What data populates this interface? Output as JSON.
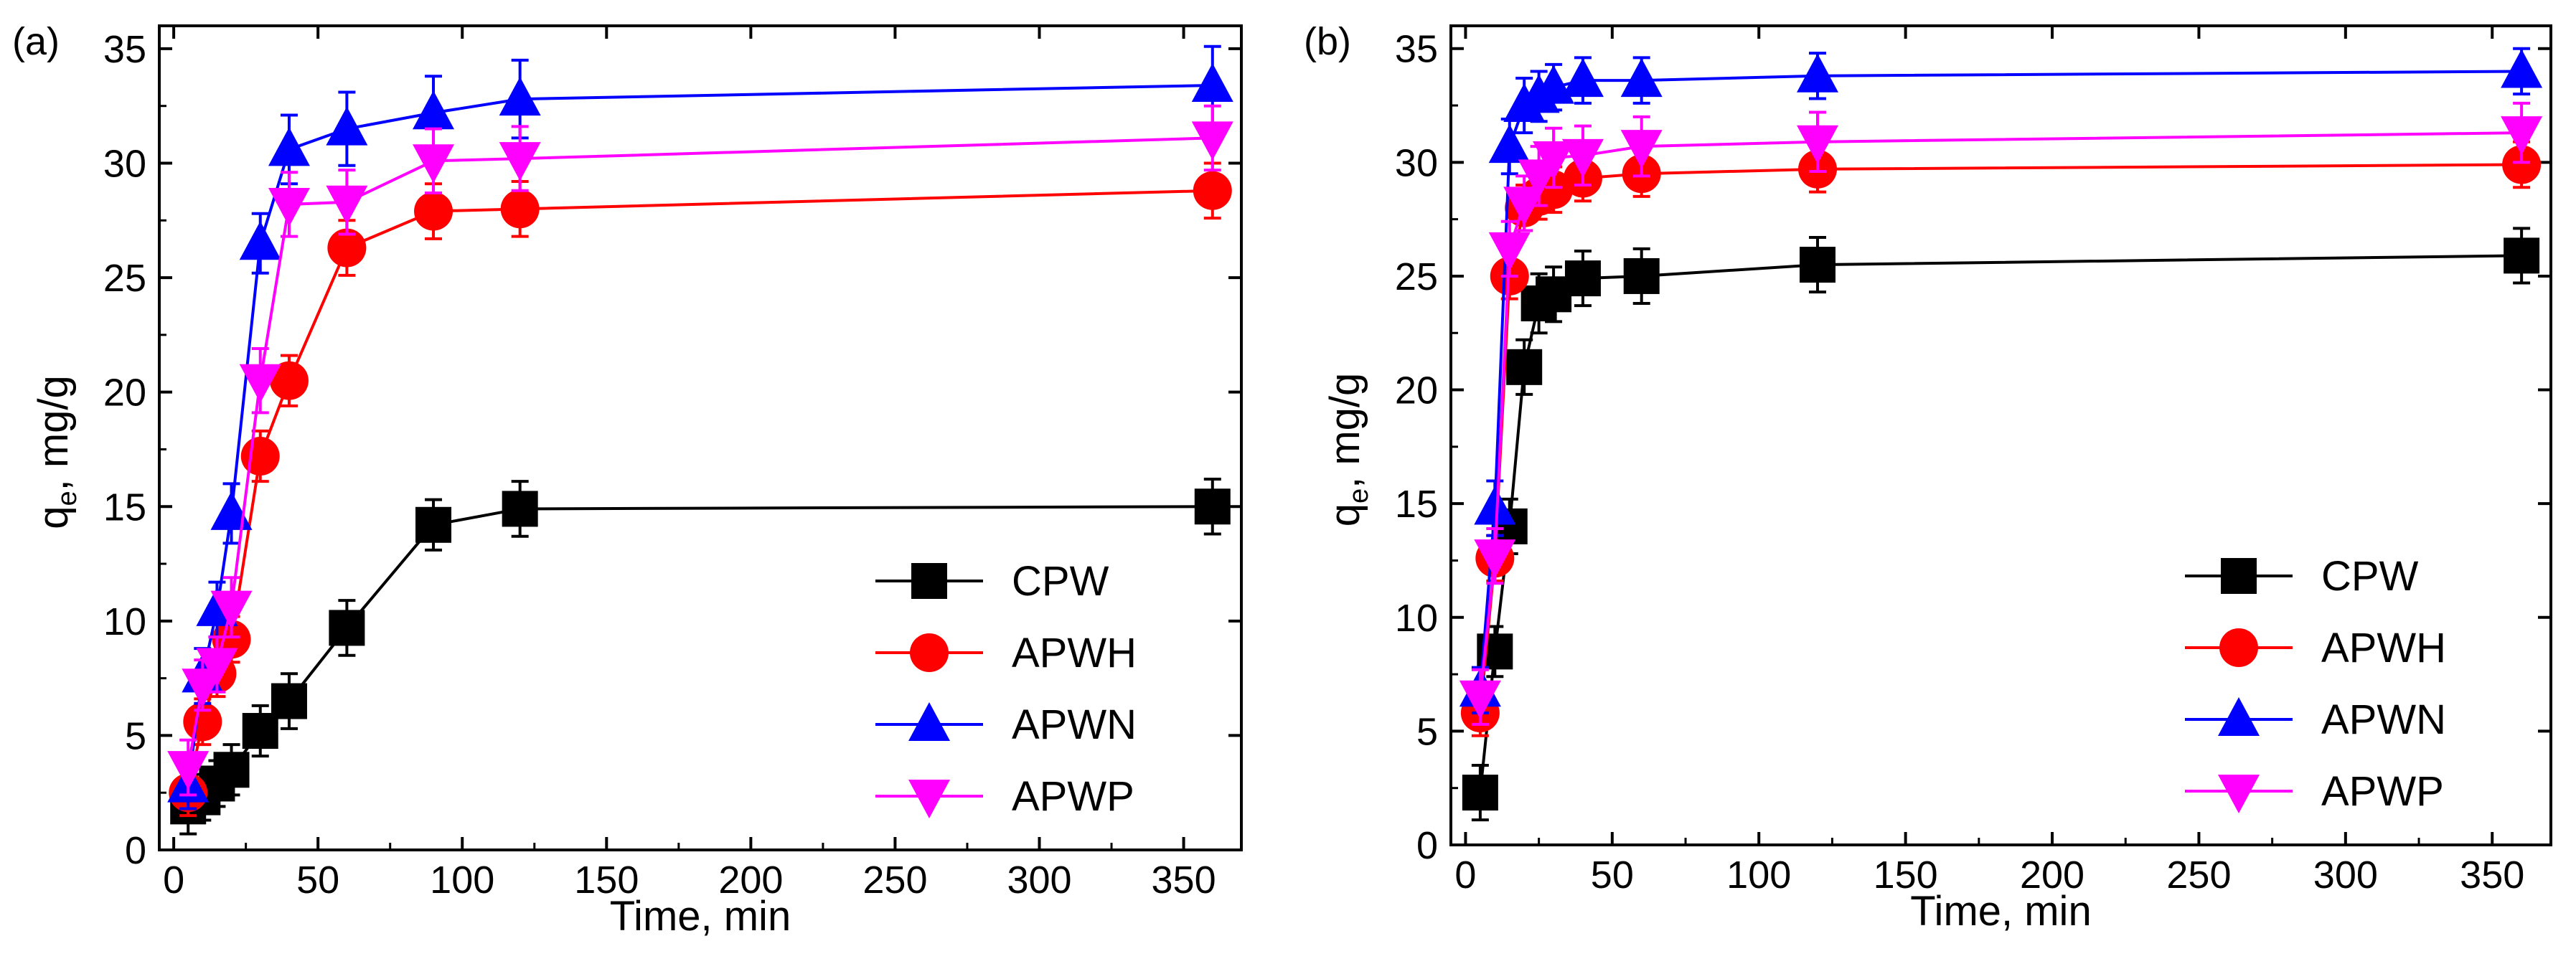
{
  "chart_data": [
    {
      "type": "line",
      "panel_label": "(a)",
      "xlabel": "Time, min",
      "ylabel_main": "q",
      "ylabel_sub": "e",
      "ylabel_tail": ", mg/g",
      "xlim": [
        -5,
        370
      ],
      "ylim": [
        0,
        36
      ],
      "xticks": [
        0,
        50,
        100,
        150,
        200,
        250,
        300,
        350
      ],
      "yticks": [
        0,
        5,
        10,
        15,
        20,
        25,
        30,
        35
      ],
      "x": [
        5,
        10,
        15,
        20,
        30,
        40,
        60,
        90,
        120,
        360
      ],
      "legend_position": "bottom-right",
      "series": [
        {
          "name": "CPW",
          "color": "#000000",
          "marker": "square",
          "values": [
            1.9,
            2.3,
            2.9,
            3.5,
            5.2,
            6.5,
            9.7,
            14.2,
            14.9,
            15.0
          ],
          "errors": [
            1.2,
            1.0,
            1.0,
            1.1,
            1.1,
            1.2,
            1.2,
            1.1,
            1.2,
            1.2
          ]
        },
        {
          "name": "APWH",
          "color": "#ff0000",
          "marker": "circle",
          "values": [
            2.5,
            5.6,
            7.7,
            9.2,
            17.2,
            20.5,
            26.3,
            27.9,
            28.0,
            28.8
          ],
          "errors": [
            1.0,
            1.0,
            1.0,
            1.0,
            1.1,
            1.1,
            1.2,
            1.2,
            1.2,
            1.2
          ]
        },
        {
          "name": "APWN",
          "color": "#0000ff",
          "marker": "triangle-up",
          "values": [
            2.8,
            7.6,
            10.5,
            14.7,
            26.5,
            30.6,
            31.5,
            32.2,
            32.8,
            33.4
          ],
          "errors": [
            1.0,
            1.2,
            1.2,
            1.3,
            1.3,
            1.5,
            1.6,
            1.6,
            1.7,
            1.7
          ]
        },
        {
          "name": "APWP",
          "color": "#ff00ff",
          "marker": "triangle-down",
          "values": [
            3.6,
            7.2,
            8.1,
            10.6,
            20.5,
            28.2,
            28.3,
            30.1,
            30.2,
            31.1
          ],
          "errors": [
            1.2,
            1.1,
            1.2,
            1.3,
            1.4,
            1.4,
            1.4,
            1.4,
            1.4,
            1.4
          ]
        }
      ]
    },
    {
      "type": "line",
      "panel_label": "(b)",
      "xlabel": "Time, min",
      "ylabel_main": "q",
      "ylabel_sub": "e",
      "ylabel_tail": ", mg/g",
      "xlim": [
        -5,
        370
      ],
      "ylim": [
        0,
        36
      ],
      "xticks": [
        0,
        50,
        100,
        150,
        200,
        250,
        300,
        350
      ],
      "yticks": [
        0,
        5,
        10,
        15,
        20,
        25,
        30,
        35
      ],
      "x": [
        5,
        10,
        15,
        20,
        25,
        30,
        40,
        60,
        120,
        360
      ],
      "legend_position": "bottom-right",
      "series": [
        {
          "name": "CPW",
          "color": "#000000",
          "marker": "square",
          "values": [
            2.3,
            8.5,
            14.0,
            21.0,
            23.8,
            24.2,
            24.9,
            25.0,
            25.5,
            25.9
          ],
          "errors": [
            1.2,
            1.1,
            1.2,
            1.2,
            1.3,
            1.2,
            1.2,
            1.2,
            1.2,
            1.2
          ]
        },
        {
          "name": "APWH",
          "color": "#ff0000",
          "marker": "circle",
          "values": [
            5.8,
            12.6,
            25.0,
            28.0,
            28.5,
            28.8,
            29.3,
            29.5,
            29.7,
            29.9
          ],
          "errors": [
            1.0,
            1.0,
            1.0,
            1.0,
            1.0,
            1.0,
            1.0,
            1.0,
            1.0,
            1.0
          ]
        },
        {
          "name": "APWN",
          "color": "#0000ff",
          "marker": "triangle-up",
          "values": [
            6.8,
            14.8,
            30.7,
            32.5,
            32.9,
            33.3,
            33.6,
            33.6,
            33.8,
            34.0
          ],
          "errors": [
            1.0,
            1.2,
            1.2,
            1.2,
            1.1,
            1.0,
            1.0,
            1.0,
            1.0,
            1.0
          ]
        },
        {
          "name": "APWP",
          "color": "#ff00ff",
          "marker": "triangle-down",
          "values": [
            6.5,
            12.7,
            26.2,
            28.2,
            29.4,
            30.2,
            30.3,
            30.7,
            30.9,
            31.3
          ],
          "errors": [
            1.2,
            1.2,
            1.2,
            1.2,
            1.3,
            1.3,
            1.3,
            1.3,
            1.3,
            1.3
          ]
        }
      ]
    }
  ]
}
